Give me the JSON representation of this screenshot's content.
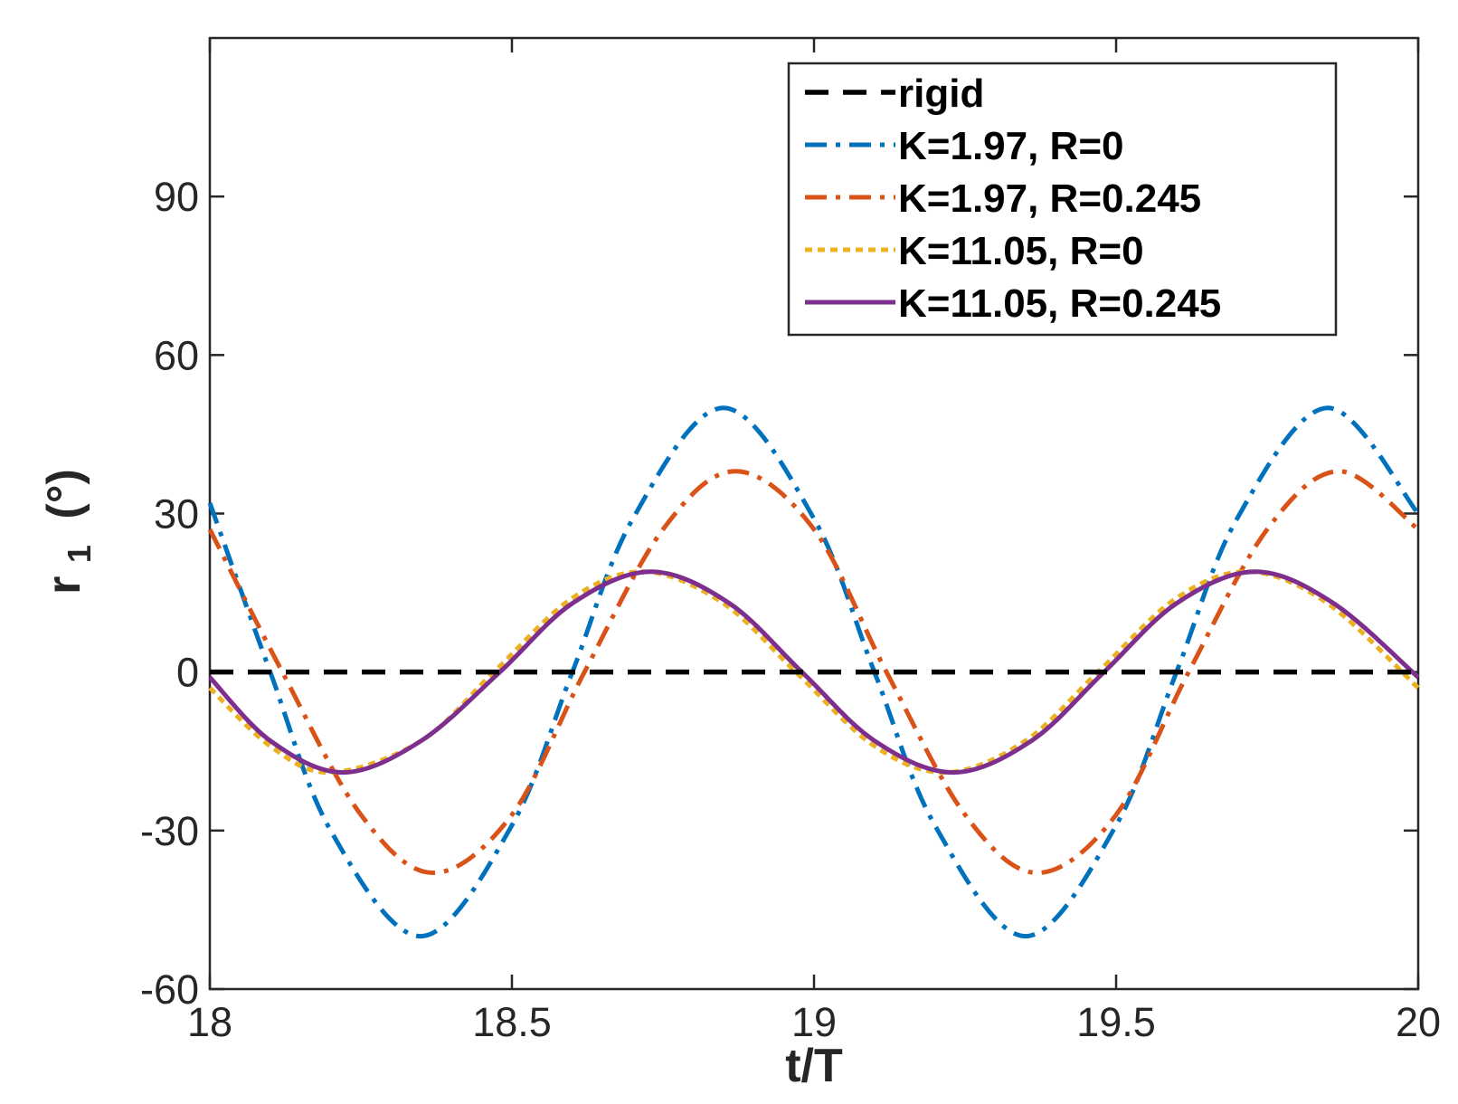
{
  "chart_data": {
    "type": "line",
    "xlabel": "t/T",
    "ylabel_main": "r",
    "ylabel_sub": "1",
    "ylabel_unit": "(°)",
    "xlim": [
      18,
      20
    ],
    "ylim": [
      -60,
      120
    ],
    "xticks": [
      18,
      18.5,
      19,
      19.5,
      20
    ],
    "xtick_labels": [
      "18",
      "18.5",
      "19",
      "19.5",
      "20"
    ],
    "yticks": [
      -60,
      -30,
      0,
      30,
      60,
      90
    ],
    "ytick_labels": [
      "-60",
      "-30",
      "0",
      "30",
      "60",
      "90"
    ],
    "grid": false,
    "box": true,
    "legend_position": "top-right",
    "series": [
      {
        "name": "rigid",
        "color": "#000000",
        "style": "dashed",
        "x": [
          18,
          20
        ],
        "values": [
          0,
          0
        ]
      },
      {
        "name": "K=1.97, R=0",
        "color": "#0072BD",
        "style": "dash-dot",
        "x": [
          18,
          18.1,
          18.2,
          18.35,
          18.5,
          18.6,
          18.7,
          18.85,
          19,
          19.1,
          19.2,
          19.35,
          19.5,
          19.6,
          19.7,
          19.85,
          20
        ],
        "values": [
          32,
          0,
          -30,
          -50,
          -29,
          0,
          29,
          50,
          29,
          0,
          -29,
          -50,
          -29,
          0,
          29,
          50,
          30
        ]
      },
      {
        "name": "K=1.97, R=0.245",
        "color": "#D95319",
        "style": "dash-dot",
        "x": [
          18,
          18.12,
          18.25,
          18.37,
          18.5,
          18.62,
          18.75,
          18.87,
          19,
          19.12,
          19.25,
          19.37,
          19.5,
          19.62,
          19.75,
          19.87,
          20
        ],
        "values": [
          27,
          0,
          -27,
          -38,
          -27,
          0,
          27,
          38,
          27,
          0,
          -27,
          -38,
          -27,
          0,
          27,
          38,
          27
        ]
      },
      {
        "name": "K=11.05, R=0",
        "color": "#EDB120",
        "style": "dotted",
        "x": [
          18,
          18.1,
          18.2,
          18.35,
          18.47,
          18.6,
          18.72,
          18.85,
          18.97,
          19.1,
          19.22,
          19.35,
          19.47,
          19.6,
          19.72,
          19.85,
          20
        ],
        "values": [
          -3,
          -14,
          -19,
          -13,
          0,
          14,
          19,
          13,
          0,
          -14,
          -19,
          -13,
          0,
          14,
          19,
          13,
          -3
        ]
      },
      {
        "name": "K=11.05, R=0.245",
        "color": "#7E2F8E",
        "style": "solid",
        "x": [
          18,
          18.1,
          18.22,
          18.35,
          18.48,
          18.6,
          18.73,
          18.86,
          18.98,
          19.1,
          19.23,
          19.36,
          19.48,
          19.6,
          19.73,
          19.86,
          20
        ],
        "values": [
          -1,
          -13,
          -19,
          -13,
          0,
          13,
          19,
          13,
          0,
          -13,
          -19,
          -13,
          0,
          13,
          19,
          13,
          -1
        ]
      }
    ]
  }
}
